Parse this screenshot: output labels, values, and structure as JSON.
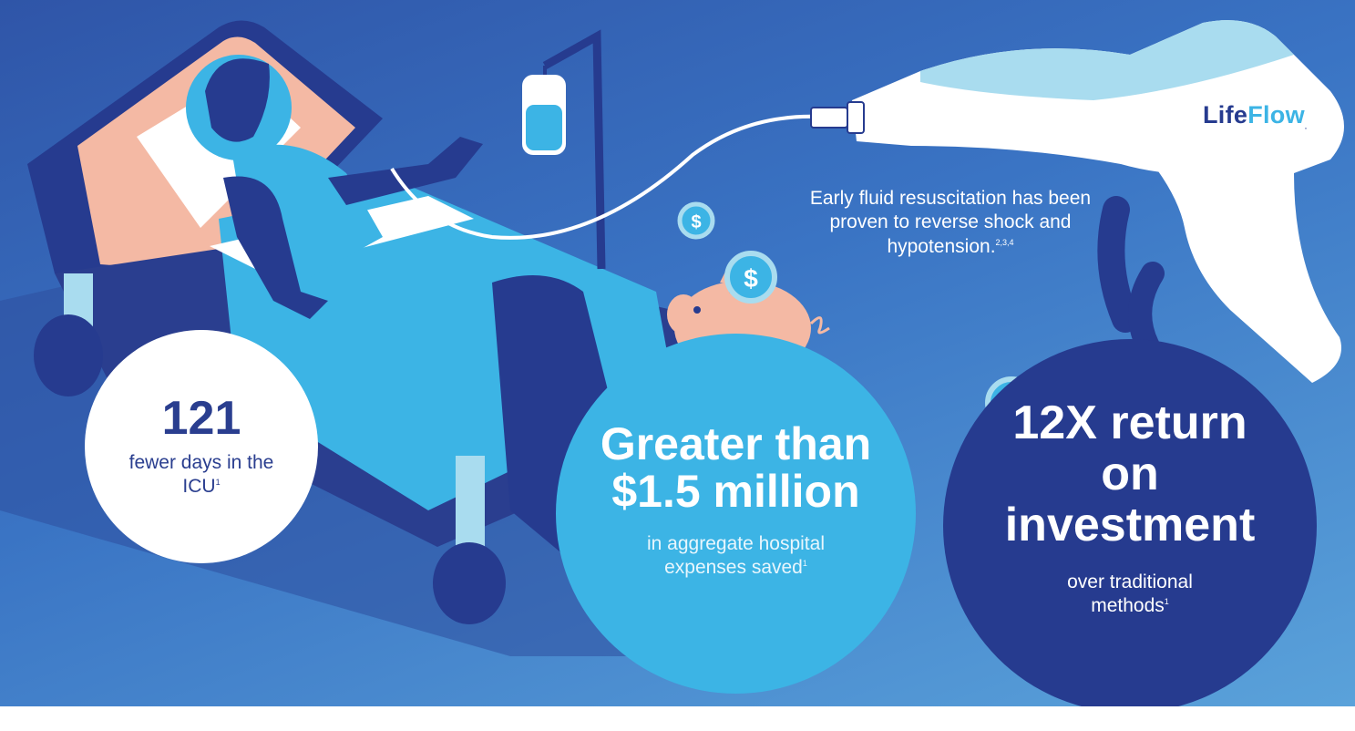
{
  "stats": {
    "icu": {
      "value": "121",
      "caption": "fewer days in the ICU",
      "footnote": "1"
    },
    "savings": {
      "value": "Greater than $1.5 million",
      "caption": "in aggregate hospital expenses saved",
      "footnote": "1"
    },
    "roi": {
      "value": "12X return on investment",
      "caption": "over traditional methods",
      "footnote": "1"
    }
  },
  "note": {
    "text": "Early fluid resuscitation has been proven to reverse shock and hypotension.",
    "footnote": "2,3,4"
  },
  "brand": {
    "part1": "Life",
    "part2": "Flow",
    "mark": "."
  },
  "icons": [
    "dollar-coin-icon",
    "piggy-bank-icon",
    "iv-bag-icon",
    "patient-bed-illustration",
    "lifeflow-device-illustration"
  ],
  "colors": {
    "navy": "#263b8f",
    "sky": "#3cb4e5",
    "white": "#ffffff",
    "peach": "#f4b9a4",
    "light_blue": "#a9dcef"
  }
}
